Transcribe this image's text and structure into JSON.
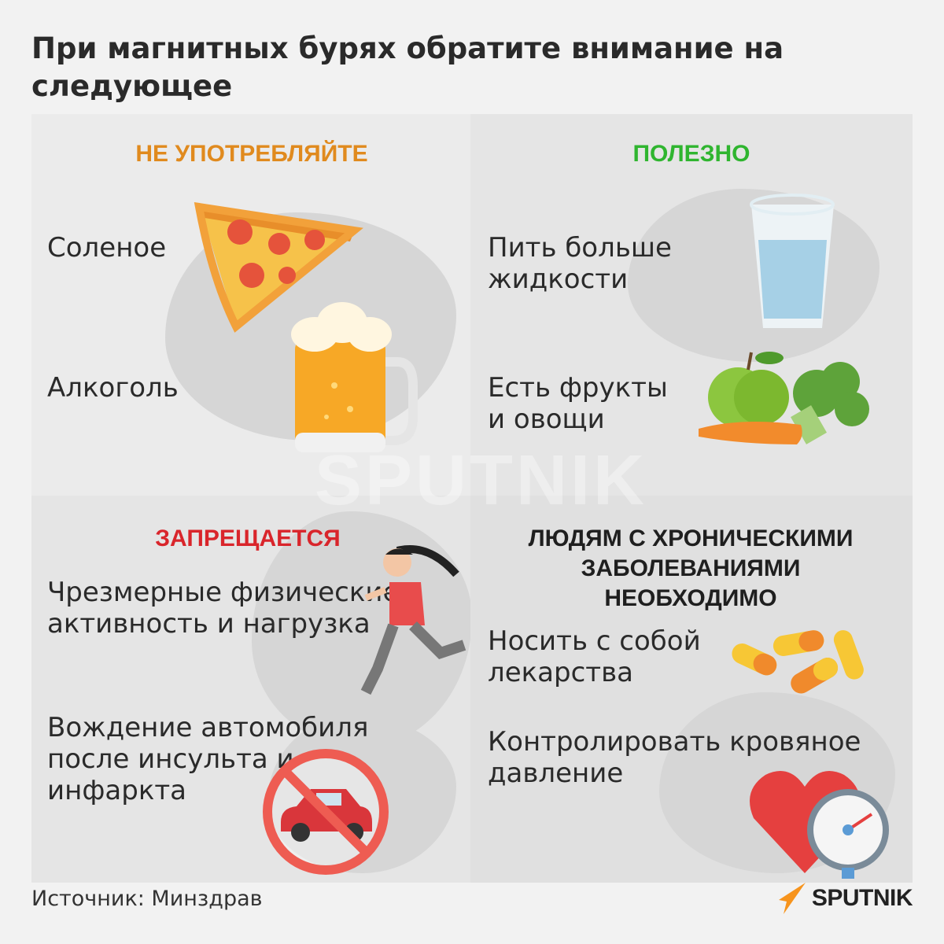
{
  "title": "При магнитных бурях обратите внимание на следующее",
  "colors": {
    "orange": "#e08a1e",
    "green": "#2fb52f",
    "red": "#d9252b",
    "background": "#f2f2f2"
  },
  "panels": [
    {
      "heading": "НЕ УПОТРЕБЛЯЙТЕ",
      "items": [
        {
          "text": "Соленое",
          "icon": "pizza-icon"
        },
        {
          "text": "Алкоголь",
          "icon": "beer-mug-icon"
        }
      ]
    },
    {
      "heading": "ПОЛЕЗНО",
      "items": [
        {
          "text": "Пить больше жидкости",
          "icon": "water-glass-icon"
        },
        {
          "text": "Есть фрукты и овощи",
          "icon": "fruits-vegetables-icon"
        }
      ]
    },
    {
      "heading": "ЗАПРЕЩАЕТСЯ",
      "items": [
        {
          "text": "Чрезмерные физические активность и нагрузка",
          "icon": "runner-icon"
        },
        {
          "text": "Вождение автомобиля после инсульта и инфаркта",
          "icon": "no-car-icon"
        }
      ]
    },
    {
      "heading": "ЛЮДЯМ С ХРОНИЧЕСКИМИ ЗАБОЛЕВАНИЯМИ НЕОБХОДИМО",
      "items": [
        {
          "text": "Носить с собой лекарства",
          "icon": "pills-icon"
        },
        {
          "text": "Контролировать кровяное давление",
          "icon": "heart-gauge-icon"
        }
      ]
    }
  ],
  "footer": {
    "source": "Источник: Минздрав",
    "logo": "SPUTNIK"
  }
}
